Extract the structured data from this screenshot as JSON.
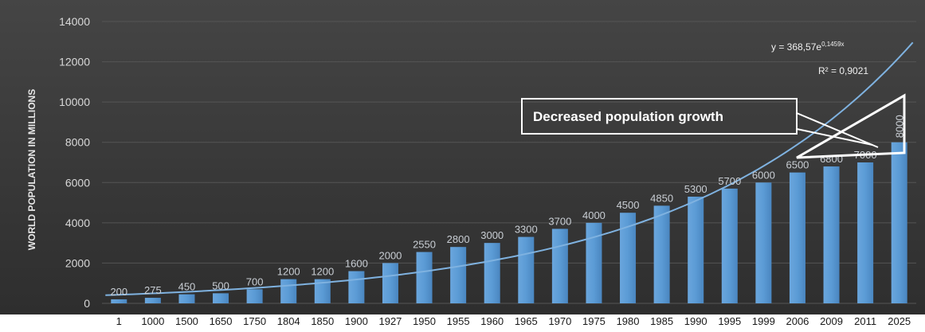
{
  "chart_data": {
    "type": "bar",
    "ylabel": "WORLD POPULATION IN MILLIONS",
    "xlabel": "",
    "title": "",
    "ylim": [
      0,
      14000
    ],
    "yticks": [
      0,
      2000,
      4000,
      6000,
      8000,
      10000,
      12000,
      14000
    ],
    "grid": true,
    "categories": [
      "1",
      "1000",
      "1500",
      "1650",
      "1750",
      "1804",
      "1850",
      "1900",
      "1927",
      "1950",
      "1955",
      "1960",
      "1965",
      "1970",
      "1975",
      "1980",
      "1985",
      "1990",
      "1995",
      "1999",
      "2006",
      "2009",
      "2011",
      "2025"
    ],
    "values": [
      200,
      275,
      450,
      500,
      700,
      1200,
      1200,
      1600,
      2000,
      2550,
      2800,
      3000,
      3300,
      3700,
      4000,
      4500,
      4850,
      5300,
      5700,
      6000,
      6500,
      6800,
      7000,
      8000
    ],
    "data_labels": [
      "200",
      "275",
      "450",
      "500",
      "700",
      "1200",
      "1200",
      "1600",
      "2000",
      "2550",
      "2800",
      "3000",
      "3300",
      "3700",
      "4000",
      "4500",
      "4850",
      "5300",
      "5700",
      "6000",
      "6500",
      "6800",
      "7000",
      "8000"
    ],
    "trendline": {
      "type": "exponential",
      "a": 368.57,
      "b": 0.1459,
      "equation": "y = 368,57e",
      "exponent": "0,1459x",
      "r_squared": "R² = 0,9021"
    },
    "annotation": "Decreased population growth"
  },
  "colors": {
    "background": "#3a3a3a",
    "bar": "#5b9bd5",
    "trendline": "#7fb2e0",
    "grid": "#555555"
  }
}
